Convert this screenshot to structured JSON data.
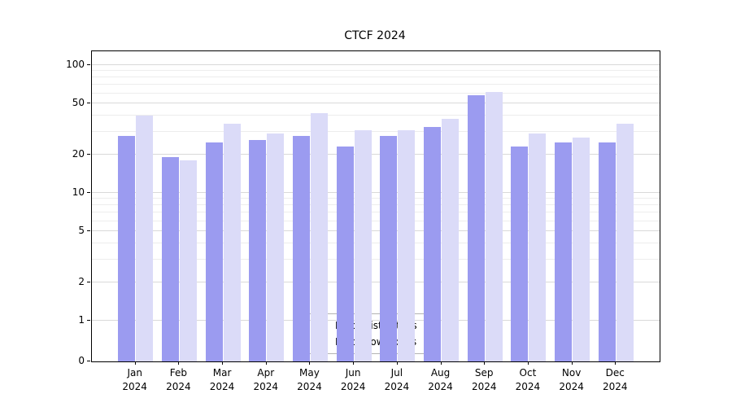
{
  "chart_data": {
    "type": "bar",
    "title": "CTCF 2024",
    "scale": "symlog",
    "grid": "horizontal major+minor",
    "legend_position": "bottom-center-inside",
    "ylim": [
      0,
      100
    ],
    "yticks": [
      0,
      1,
      2,
      5,
      10,
      20,
      50,
      100
    ],
    "categories": [
      "Jan",
      "Feb",
      "Mar",
      "Apr",
      "May",
      "Jun",
      "Jul",
      "Aug",
      "Sep",
      "Oct",
      "Nov",
      "Dec"
    ],
    "year_label": "2024",
    "series": [
      {
        "name": "Nb of distinct IPs",
        "color": "#9b9bf0",
        "values": [
          28,
          19,
          25,
          26,
          28,
          23,
          28,
          33,
          58,
          23,
          25,
          25
        ]
      },
      {
        "name": "Nb of downloads",
        "color": "#dbdbf8",
        "values": [
          40,
          18,
          35,
          29,
          42,
          31,
          31,
          38,
          62,
          29,
          27,
          35
        ]
      }
    ]
  }
}
